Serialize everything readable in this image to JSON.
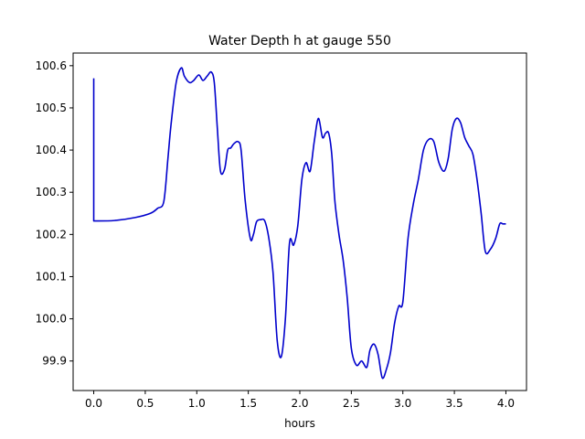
{
  "chart_data": {
    "type": "line",
    "title": "Water Depth h at gauge 550",
    "xlabel": "hours",
    "ylabel": "",
    "xlim": [
      -0.2,
      4.2
    ],
    "ylim": [
      99.83,
      100.63
    ],
    "xticks": [
      0.0,
      0.5,
      1.0,
      1.5,
      2.0,
      2.5,
      3.0,
      3.5,
      4.0
    ],
    "xtick_labels": [
      "0.0",
      "0.5",
      "1.0",
      "1.5",
      "2.0",
      "2.5",
      "3.0",
      "3.5",
      "4.0"
    ],
    "yticks": [
      99.9,
      100.0,
      100.1,
      100.2,
      100.3,
      100.4,
      100.5,
      100.6
    ],
    "ytick_labels": [
      "99.9",
      "100.0",
      "100.1",
      "100.2",
      "100.3",
      "100.4",
      "100.5",
      "100.6"
    ],
    "grid": false,
    "series": [
      {
        "name": "",
        "color": "#0000cc",
        "x": [
          0.0,
          0.0,
          0.0,
          0.2,
          0.4,
          0.55,
          0.62,
          0.68,
          0.72,
          0.75,
          0.8,
          0.85,
          0.88,
          0.93,
          0.97,
          1.02,
          1.06,
          1.1,
          1.14,
          1.17,
          1.2,
          1.23,
          1.27,
          1.3,
          1.33,
          1.36,
          1.4,
          1.43,
          1.47,
          1.52,
          1.55,
          1.58,
          1.62,
          1.66,
          1.7,
          1.74,
          1.78,
          1.82,
          1.86,
          1.9,
          1.94,
          1.98,
          2.02,
          2.06,
          2.1,
          2.14,
          2.18,
          2.22,
          2.25,
          2.28,
          2.31,
          2.34,
          2.38,
          2.42,
          2.46,
          2.5,
          2.55,
          2.6,
          2.65,
          2.68,
          2.72,
          2.76,
          2.8,
          2.84,
          2.88,
          2.92,
          2.96,
          3.0,
          3.05,
          3.1,
          3.15,
          3.2,
          3.25,
          3.3,
          3.35,
          3.4,
          3.44,
          3.48,
          3.52,
          3.56,
          3.6,
          3.64,
          3.68,
          3.72,
          3.76,
          3.8,
          3.85,
          3.9,
          3.94,
          3.97,
          4.0
        ],
        "y": [
          100.57,
          100.57,
          100.232,
          100.233,
          100.24,
          100.25,
          100.262,
          100.278,
          100.38,
          100.46,
          100.56,
          100.595,
          100.575,
          100.56,
          100.565,
          100.578,
          100.565,
          100.575,
          100.585,
          100.56,
          100.45,
          100.35,
          100.355,
          100.4,
          100.405,
          100.415,
          100.42,
          100.4,
          100.28,
          100.19,
          100.2,
          100.23,
          100.235,
          100.232,
          100.19,
          100.11,
          99.95,
          99.91,
          100.0,
          100.18,
          100.175,
          100.22,
          100.33,
          100.37,
          100.35,
          100.42,
          100.475,
          100.43,
          100.44,
          100.44,
          100.39,
          100.28,
          100.2,
          100.14,
          100.05,
          99.93,
          99.89,
          99.9,
          99.885,
          99.925,
          99.94,
          99.915,
          99.86,
          99.88,
          99.92,
          99.99,
          100.03,
          100.04,
          100.19,
          100.27,
          100.33,
          100.4,
          100.425,
          100.42,
          100.37,
          100.35,
          100.38,
          100.45,
          100.475,
          100.465,
          100.43,
          100.41,
          100.39,
          100.33,
          100.25,
          100.16,
          100.165,
          100.19,
          100.225,
          100.225,
          100.225
        ]
      }
    ]
  }
}
